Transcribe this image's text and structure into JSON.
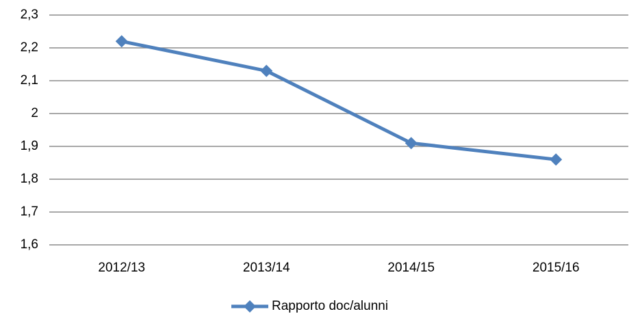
{
  "chart_data": {
    "type": "line",
    "categories": [
      "2012/13",
      "2013/14",
      "2014/15",
      "2015/16"
    ],
    "series": [
      {
        "name": "Rapporto doc/alunni",
        "color": "#4f81bd",
        "values": [
          2.22,
          2.13,
          1.91,
          1.86
        ]
      }
    ],
    "ylim": [
      1.6,
      2.3
    ],
    "yticks": [
      {
        "value": 1.6,
        "label": "1,6"
      },
      {
        "value": 1.7,
        "label": "1,7"
      },
      {
        "value": 1.8,
        "label": "1,8"
      },
      {
        "value": 1.9,
        "label": "1,9"
      },
      2,
      {
        "value": 2.1,
        "label": "2,1"
      },
      {
        "value": 2.2,
        "label": "2,2"
      },
      {
        "value": 2.3,
        "label": "2,3"
      }
    ],
    "grid": true,
    "legend": "bottom"
  }
}
